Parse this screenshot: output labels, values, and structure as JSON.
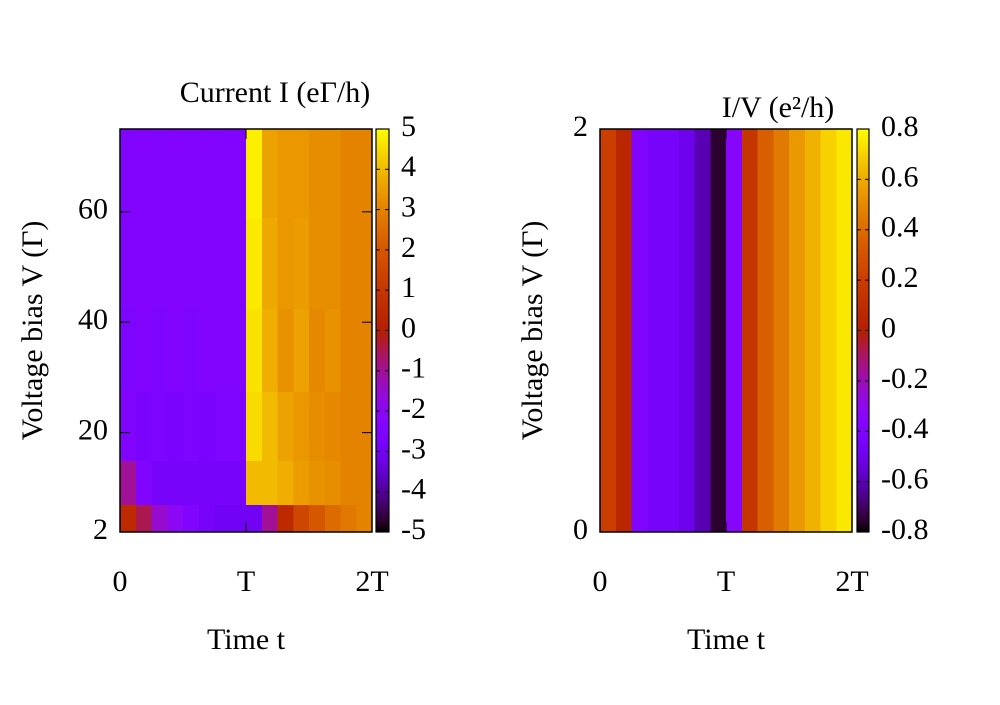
{
  "chart_data": [
    {
      "type": "heatmap",
      "title": "Current I (eΓ/h)",
      "xlabel": "Time t",
      "ylabel": "Voltage bias V (Γ)",
      "x": [
        0.0625,
        0.1875,
        0.3125,
        0.4375,
        0.5625,
        0.6875,
        0.8125,
        0.9375,
        1.0625,
        1.1875,
        1.3125,
        1.4375,
        1.5625,
        1.6875,
        1.8125,
        1.9375
      ],
      "y": [
        4,
        10,
        20,
        35,
        50,
        68
      ],
      "z": [
        [
          0.5,
          -0.5,
          -1.5,
          -2,
          -2.5,
          -2.8,
          -3,
          -3,
          -3,
          -1,
          0.5,
          1.5,
          2,
          2.5,
          2.8,
          3
        ],
        [
          -1,
          -2.5,
          -2.8,
          -2.8,
          -2.8,
          -2.8,
          -2.8,
          -2.8,
          4,
          4,
          3.8,
          3.5,
          3.3,
          3.2,
          3,
          3
        ],
        [
          -2.5,
          -2.7,
          -2.6,
          -2.7,
          -2.6,
          -2.7,
          -2.6,
          -2.6,
          4.5,
          4,
          3.6,
          3.4,
          3.2,
          3.1,
          3,
          3
        ],
        [
          -2.6,
          -2.4,
          -2.6,
          -2.4,
          -2.6,
          -2.4,
          -2.5,
          -2.5,
          4.6,
          3.8,
          3.3,
          3.6,
          3.1,
          3.3,
          3,
          3
        ],
        [
          -2.5,
          -2.4,
          -2.5,
          -2.4,
          -2.5,
          -2.4,
          -2.5,
          -2.5,
          4.7,
          3.7,
          3.4,
          3.5,
          3.2,
          3.2,
          3,
          3
        ],
        [
          -2.5,
          -2.4,
          -2.5,
          -2.4,
          -2.5,
          -2.4,
          -2.5,
          -2.5,
          4.8,
          3.6,
          3.4,
          3.4,
          3.2,
          3.2,
          3,
          3
        ]
      ],
      "xlim": [
        0,
        2
      ],
      "xticks": [
        0,
        {
          "value": 1,
          "label": "T"
        },
        {
          "value": 2,
          "label": "2T"
        }
      ],
      "ylim": [
        2,
        75
      ],
      "yticks": [
        2,
        20,
        40,
        60
      ],
      "zlim": [
        -5,
        5
      ],
      "zticks": [
        -5,
        -4,
        -3,
        -2,
        -1,
        0,
        1,
        2,
        3,
        4,
        5
      ]
    },
    {
      "type": "heatmap",
      "title": "I/V (e²/h)",
      "xlabel": "Time t",
      "ylabel": "Voltage bias V (Γ)",
      "x": [
        0.0625,
        0.1875,
        0.3125,
        0.4375,
        0.5625,
        0.6875,
        0.8125,
        0.9375,
        1.0625,
        1.1875,
        1.3125,
        1.4375,
        1.5625,
        1.6875,
        1.8125,
        1.9375
      ],
      "y": [
        1
      ],
      "z": [
        [
          0.2,
          0.05,
          -0.4,
          -0.45,
          -0.45,
          -0.5,
          -0.6,
          -0.75,
          -0.35,
          0.15,
          0.35,
          0.45,
          0.55,
          0.62,
          0.7,
          0.75
        ]
      ],
      "xlim": [
        0,
        2
      ],
      "xticks": [
        0,
        {
          "value": 1,
          "label": "T"
        },
        {
          "value": 2,
          "label": "2T"
        }
      ],
      "ylim": [
        0,
        2
      ],
      "yticks": [
        0,
        2
      ],
      "zlim": [
        -0.8,
        0.8
      ],
      "zticks": [
        -0.8,
        -0.6,
        -0.4,
        -0.2,
        0,
        0.2,
        0.4,
        0.6,
        0.8
      ]
    }
  ]
}
